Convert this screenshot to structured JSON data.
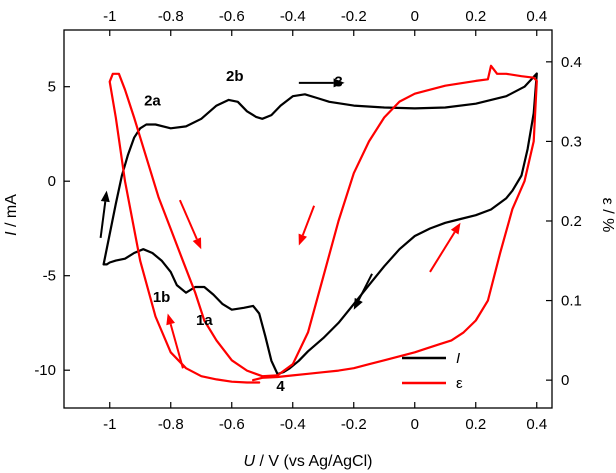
{
  "chart_data": {
    "type": "line",
    "xlabel_italic": "U",
    "xlabel_rest": " / V (vs Ag/AgCl)",
    "ylabel_italic": "I",
    "ylabel_rest": " / mA",
    "y2label": "ε / %",
    "xlim": [
      -1.15,
      0.45
    ],
    "ylim": [
      -12,
      8
    ],
    "y2lim": [
      -0.035,
      0.44
    ],
    "x_ticks": [
      -1,
      -0.8,
      -0.6,
      -0.4,
      -0.2,
      0,
      0.2,
      0.4
    ],
    "x_tick_labels": [
      "-1",
      "-0.8",
      "-0.6",
      "-0.4",
      "-0.2",
      "0",
      "0.2",
      "0.4"
    ],
    "top_ticks": [
      -1,
      -0.8,
      -0.6,
      -0.4,
      -0.2,
      0,
      0.2,
      0.4
    ],
    "top_tick_labels": [
      "-1",
      "-0.8",
      "-0.6",
      "-0.4",
      "-0.2",
      "0",
      "0.2",
      "0.4"
    ],
    "y_ticks": [
      -10,
      -5,
      0,
      5
    ],
    "y_tick_labels": [
      "-10",
      "-5",
      "0",
      "5"
    ],
    "y2_ticks": [
      0,
      0.1,
      0.2,
      0.3,
      0.4
    ],
    "y2_tick_labels": [
      "0",
      "0.1",
      "0.2",
      "0.3",
      "0.4"
    ],
    "series": [
      {
        "name": "I",
        "axis": "left",
        "color": "#000000",
        "x": [
          -1.02,
          -1.0,
          -0.98,
          -0.96,
          -0.94,
          -0.92,
          -0.9,
          -0.88,
          -0.85,
          -0.8,
          -0.75,
          -0.7,
          -0.65,
          -0.61,
          -0.58,
          -0.55,
          -0.52,
          -0.5,
          -0.47,
          -0.44,
          -0.4,
          -0.36,
          -0.32,
          -0.28,
          -0.2,
          -0.1,
          0.0,
          0.1,
          0.2,
          0.3,
          0.36,
          0.4,
          0.39,
          0.37,
          0.35,
          0.32,
          0.3,
          0.25,
          0.2,
          0.15,
          0.1,
          0.05,
          0.0,
          -0.05,
          -0.1,
          -0.15,
          -0.2,
          -0.25,
          -0.3,
          -0.35,
          -0.38,
          -0.41,
          -0.43,
          -0.45,
          -0.47,
          -0.49,
          -0.51,
          -0.53,
          -0.56,
          -0.6,
          -0.63,
          -0.66,
          -0.69,
          -0.72,
          -0.75,
          -0.78,
          -0.8,
          -0.83,
          -0.86,
          -0.89,
          -0.92,
          -0.95,
          -0.98,
          -1.0,
          -1.01,
          -1.02
        ],
        "y": [
          -4.4,
          -2.8,
          -1.2,
          0.3,
          1.4,
          2.3,
          2.8,
          3.0,
          3.0,
          2.8,
          2.9,
          3.3,
          4.0,
          4.3,
          4.2,
          3.7,
          3.4,
          3.3,
          3.5,
          4.0,
          4.5,
          4.6,
          4.4,
          4.2,
          4.0,
          3.9,
          3.85,
          3.9,
          4.1,
          4.5,
          5.0,
          5.7,
          3.6,
          1.7,
          0.3,
          -0.5,
          -0.9,
          -1.5,
          -1.8,
          -2.0,
          -2.2,
          -2.5,
          -2.9,
          -3.6,
          -4.5,
          -5.5,
          -6.5,
          -7.5,
          -8.3,
          -9.0,
          -9.5,
          -9.9,
          -10.1,
          -10.2,
          -9.5,
          -8.2,
          -7.0,
          -6.6,
          -6.7,
          -6.8,
          -6.5,
          -6.0,
          -5.6,
          -5.6,
          -5.9,
          -5.5,
          -4.8,
          -4.2,
          -3.8,
          -3.6,
          -3.8,
          -4.1,
          -4.2,
          -4.3,
          -4.4,
          -4.4
        ]
      },
      {
        "name": "ε",
        "axis": "right",
        "color": "#ff0000",
        "x": [
          -0.51,
          -0.55,
          -0.6,
          -0.65,
          -0.7,
          -0.75,
          -0.8,
          -0.85,
          -0.9,
          -0.95,
          -0.98,
          -1.0,
          -0.99,
          -0.97,
          -0.95,
          -0.92,
          -0.88,
          -0.84,
          -0.8,
          -0.76,
          -0.72,
          -0.69,
          -0.65,
          -0.6,
          -0.55,
          -0.5,
          -0.45,
          -0.4,
          -0.35,
          -0.3,
          -0.25,
          -0.2,
          -0.15,
          -0.1,
          -0.05,
          0.0,
          0.05,
          0.1,
          0.15,
          0.2,
          0.24,
          0.25,
          0.27,
          0.3,
          0.35,
          0.39,
          0.4,
          0.39,
          0.36,
          0.32,
          0.28,
          0.24,
          0.2,
          0.16,
          0.12,
          0.08,
          0.04,
          0.0,
          -0.05,
          -0.1,
          -0.15,
          -0.2,
          -0.25,
          -0.3,
          -0.35,
          -0.4,
          -0.45,
          -0.5,
          -0.53
        ],
        "y": [
          -0.003,
          -0.003,
          -0.002,
          0.001,
          0.005,
          0.015,
          0.035,
          0.08,
          0.15,
          0.25,
          0.33,
          0.375,
          0.385,
          0.385,
          0.365,
          0.33,
          0.28,
          0.23,
          0.19,
          0.15,
          0.11,
          0.075,
          0.05,
          0.025,
          0.012,
          0.005,
          0.006,
          0.02,
          0.06,
          0.13,
          0.2,
          0.26,
          0.3,
          0.33,
          0.35,
          0.36,
          0.365,
          0.37,
          0.373,
          0.376,
          0.378,
          0.395,
          0.385,
          0.385,
          0.382,
          0.38,
          0.376,
          0.3,
          0.25,
          0.215,
          0.16,
          0.1,
          0.075,
          0.06,
          0.05,
          0.045,
          0.04,
          0.035,
          0.03,
          0.025,
          0.02,
          0.015,
          0.012,
          0.01,
          0.008,
          0.006,
          0.004,
          0.003,
          0.0
        ]
      }
    ],
    "annotations": [
      {
        "text": "1a",
        "x": -0.69,
        "y": -7.6
      },
      {
        "text": "1b",
        "x": -0.83,
        "y": -6.4
      },
      {
        "text": "2a",
        "x": -0.86,
        "y": 4.0
      },
      {
        "text": "2b",
        "x": -0.59,
        "y": 5.3
      },
      {
        "text": "3",
        "x": -0.25,
        "y": 5.0
      },
      {
        "text": "4",
        "x": -0.44,
        "y": -11.1
      }
    ],
    "arrows": [
      {
        "color": "#000000",
        "from": [
          -1.03,
          -3.0
        ],
        "to": [
          -1.01,
          -0.5
        ]
      },
      {
        "color": "#000000",
        "from": [
          -0.38,
          5.2
        ],
        "to": [
          -0.23,
          5.2
        ]
      },
      {
        "color": "#000000",
        "from": [
          -0.14,
          -4.9
        ],
        "to": [
          -0.2,
          -6.8
        ]
      },
      {
        "color": "#ff0000",
        "from": [
          -0.77,
          -1.0
        ],
        "to": [
          -0.7,
          -3.6
        ]
      },
      {
        "color": "#ff0000",
        "from": [
          -0.33,
          -1.3
        ],
        "to": [
          -0.38,
          -3.4
        ]
      },
      {
        "color": "#ff0000",
        "from": [
          0.05,
          -4.8
        ],
        "to": [
          0.15,
          -2.2
        ]
      },
      {
        "color": "#ff0000",
        "from": [
          -0.76,
          -9.9
        ],
        "to": [
          -0.81,
          -7.0
        ]
      }
    ],
    "legend": {
      "placement": "bottom-right",
      "entries": [
        {
          "label": "I",
          "italic": true,
          "color": "#000000"
        },
        {
          "label": "ε",
          "italic": false,
          "color": "#ff0000"
        }
      ]
    },
    "grid": false
  }
}
